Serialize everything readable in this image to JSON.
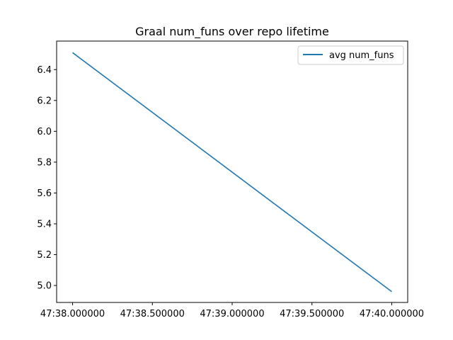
{
  "chart_data": {
    "type": "line",
    "title": "Graal num_funs over repo lifetime",
    "xlabel": "",
    "ylabel": "",
    "x_tick_labels": [
      "47:38.000000",
      "47:38.500000",
      "47:39.000000",
      "47:39.500000",
      "47:40.000000"
    ],
    "x_ticks": [
      0,
      0.5,
      1.0,
      1.5,
      2.0
    ],
    "y_ticks": [
      5.0,
      5.2,
      5.4,
      5.6,
      5.8,
      6.0,
      6.2,
      6.4
    ],
    "y_tick_labels": [
      "5.0",
      "5.2",
      "5.4",
      "5.6",
      "5.8",
      "6.0",
      "6.2",
      "6.4"
    ],
    "xlim": [
      -0.1,
      2.1
    ],
    "ylim": [
      4.89,
      6.585
    ],
    "grid": false,
    "legend_position": "upper right",
    "series": [
      {
        "name": "avg num_funs",
        "color": "#1f77b4",
        "x": [
          0,
          2.0
        ],
        "y": [
          6.51,
          4.96
        ]
      }
    ]
  }
}
